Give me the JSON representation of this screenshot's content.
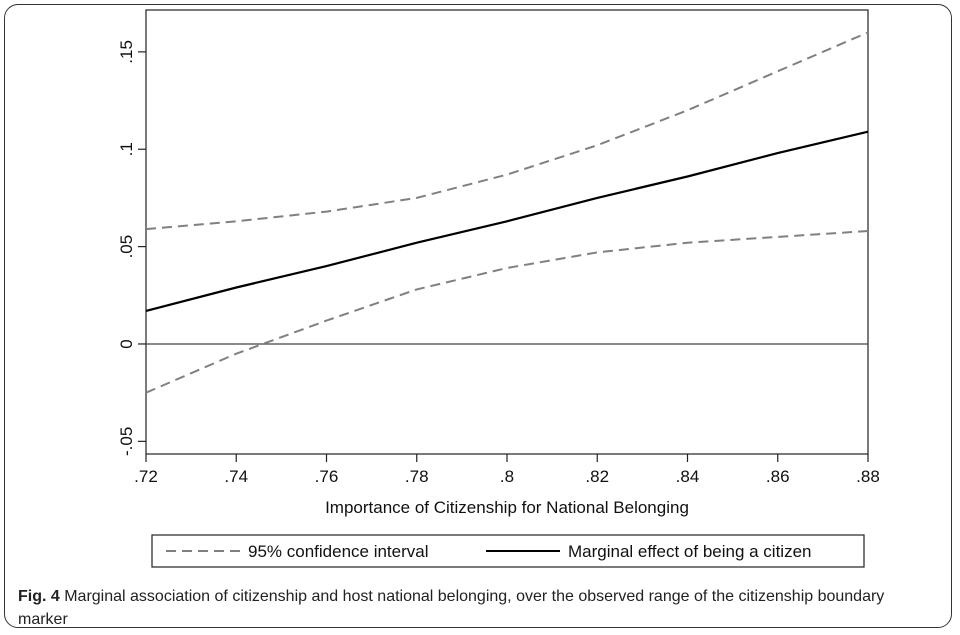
{
  "chart_data": {
    "type": "line",
    "xlabel": "Importance of Citizenship for National Belonging",
    "ylabel": "",
    "xlim": [
      0.72,
      0.88
    ],
    "ylim": [
      -0.0565,
      0.1715
    ],
    "x_ticks": [
      {
        "value": 0.72,
        "label": ".72"
      },
      {
        "value": 0.74,
        "label": ".74"
      },
      {
        "value": 0.76,
        "label": ".76"
      },
      {
        "value": 0.78,
        "label": ".78"
      },
      {
        "value": 0.8,
        "label": ".8"
      },
      {
        "value": 0.82,
        "label": ".82"
      },
      {
        "value": 0.84,
        "label": ".84"
      },
      {
        "value": 0.86,
        "label": ".86"
      },
      {
        "value": 0.88,
        "label": ".88"
      }
    ],
    "y_ticks": [
      {
        "value": -0.05,
        "label": "-.05"
      },
      {
        "value": 0,
        "label": "0"
      },
      {
        "value": 0.05,
        "label": ".05"
      },
      {
        "value": 0.1,
        "label": ".1"
      },
      {
        "value": 0.15,
        "label": ".15"
      }
    ],
    "reference_line_y": 0,
    "x": [
      0.72,
      0.74,
      0.76,
      0.78,
      0.8,
      0.82,
      0.84,
      0.86,
      0.88
    ],
    "series": [
      {
        "name": "95% confidence interval",
        "style": "dashed",
        "color": "#808080",
        "values": [
          0.059,
          0.063,
          0.068,
          0.075,
          0.087,
          0.102,
          0.12,
          0.14,
          0.16
        ]
      },
      {
        "name": "",
        "style": "dashed",
        "color": "#808080",
        "values": [
          -0.025,
          -0.005,
          0.012,
          0.028,
          0.039,
          0.047,
          0.052,
          0.055,
          0.058
        ]
      },
      {
        "name": "Marginal effect of being a citizen",
        "style": "solid",
        "color": "#000000",
        "values": [
          0.017,
          0.029,
          0.04,
          0.052,
          0.063,
          0.075,
          0.086,
          0.098,
          0.109
        ]
      }
    ],
    "legend": {
      "placement": "bottom",
      "entries": [
        {
          "label": "95% confidence interval",
          "style": "dashed",
          "color": "#808080"
        },
        {
          "label": "Marginal effect of being a citizen",
          "style": "solid",
          "color": "#000000"
        }
      ]
    },
    "grid": false
  },
  "caption": {
    "label": "Fig. 4",
    "text": " Marginal association of citizenship and host national belonging, over the observed range of the citizenship boundary marker"
  }
}
